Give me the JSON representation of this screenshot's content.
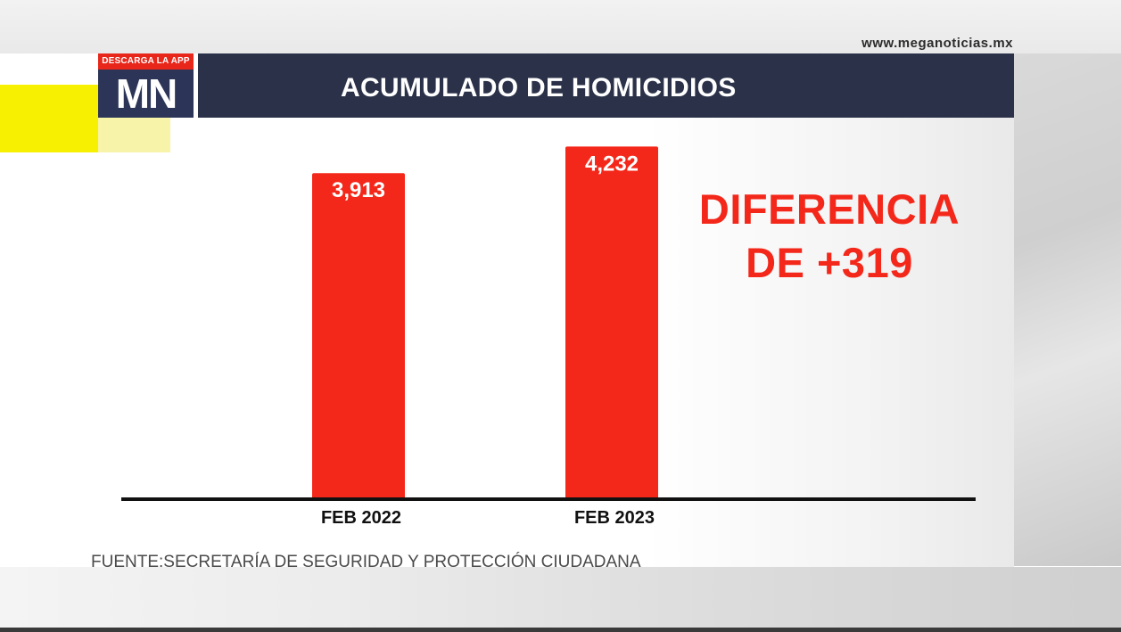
{
  "header": {
    "app_tag": "DESCARGA LA APP",
    "logo_text": "MN",
    "title": "ACUMULADO DE HOMICIDIOS",
    "website": "www.meganoticias.mx"
  },
  "annotation": {
    "line1": "DIFERENCIA",
    "line2": "DE +319"
  },
  "source": "FUENTE:SECRETARÍA DE SEGURIDAD Y PROTECCIÓN CIUDADANA",
  "colors": {
    "bar": "#f4281a",
    "title_bar": "#2a3148",
    "logo_bg": "#2c3558",
    "highlight": "#f7f000"
  },
  "chart_data": {
    "type": "bar",
    "title": "ACUMULADO DE HOMICIDIOS",
    "categories": [
      "FEB 2022",
      "FEB 2023"
    ],
    "values": [
      3913,
      4232
    ],
    "value_labels": [
      "3,913",
      "4,232"
    ],
    "ylim": [
      0,
      4600
    ],
    "grid": false,
    "legend": "none"
  }
}
